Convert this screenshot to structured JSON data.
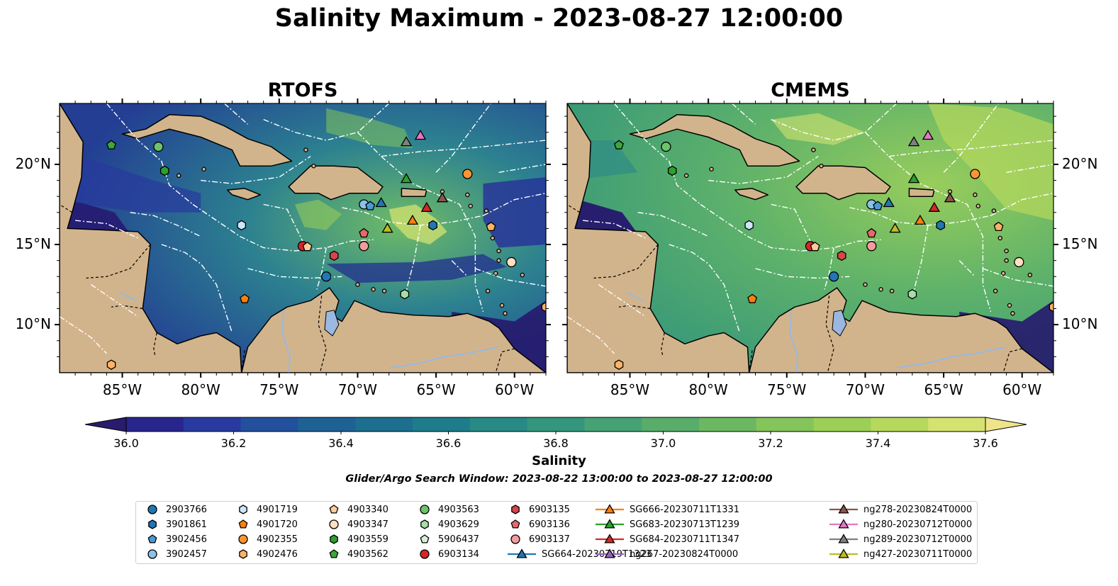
{
  "title": "Salinity Maximum - 2023-08-27 12:00:00",
  "panels": [
    {
      "title": "RTOFS",
      "ocean_mid": "#2e7f8f",
      "ocean_base": "#256f8c"
    },
    {
      "title": "CMEMS",
      "ocean_mid": "#5aae6b",
      "ocean_base": "#4ea86c"
    }
  ],
  "colors": {
    "land": "#d2b48c",
    "lake": "#9ab8e0",
    "deep": "#26186e",
    "high": "#f1e38a",
    "boundary": "#ffffff"
  },
  "lon_ticks": [
    "85°W",
    "80°W",
    "75°W",
    "70°W",
    "65°W",
    "60°W"
  ],
  "lat_ticks": [
    "20°N",
    "15°N",
    "10°N"
  ],
  "colorbar": {
    "title": "Salinity",
    "min": 36.0,
    "max": 37.6,
    "step": 0.1,
    "tick_labels": [
      "36.0",
      "36.2",
      "36.4",
      "36.6",
      "36.8",
      "37.0",
      "37.2",
      "37.4",
      "37.6"
    ],
    "colors": [
      "#2a1b6d",
      "#28258c",
      "#283aa0",
      "#23509c",
      "#1e6294",
      "#1c6f8e",
      "#1f7c8a",
      "#278a84",
      "#34967c",
      "#45a274",
      "#58ad6b",
      "#6cb862",
      "#84c45b",
      "#9ccf56",
      "#b6d95d",
      "#d4e270",
      "#efe48a"
    ]
  },
  "search_window": "Glider/Argo Search Window: 2023-08-22 13:00:00 to 2023-08-27 12:00:00",
  "legend_items": [
    {
      "label": "2903766",
      "marker": "circle",
      "color": "#1f77b4"
    },
    {
      "label": "3901861",
      "marker": "hexagon",
      "color": "#1f77b4"
    },
    {
      "label": "3902456",
      "marker": "pentagon",
      "color": "#4a9bd4"
    },
    {
      "label": "3902457",
      "marker": "circle",
      "color": "#89c2eb"
    },
    {
      "label": "4901719",
      "marker": "hexagon",
      "color": "#cfe6f8"
    },
    {
      "label": "4901720",
      "marker": "pentagon",
      "color": "#ff7f0e"
    },
    {
      "label": "4902355",
      "marker": "circle",
      "color": "#ff9433"
    },
    {
      "label": "4902476",
      "marker": "hexagon",
      "color": "#ffb266"
    },
    {
      "label": "4903340",
      "marker": "pentagon",
      "color": "#ffcc99"
    },
    {
      "label": "4903347",
      "marker": "circle",
      "color": "#ffe1c2"
    },
    {
      "label": "4903559",
      "marker": "hexagon",
      "color": "#2ca02c"
    },
    {
      "label": "4903562",
      "marker": "pentagon",
      "color": "#3aa83a"
    },
    {
      "label": "4903563",
      "marker": "circle",
      "color": "#6cc36c"
    },
    {
      "label": "4903629",
      "marker": "hexagon",
      "color": "#a7dea7"
    },
    {
      "label": "5906437",
      "marker": "pentagon",
      "color": "#d6f2d6"
    },
    {
      "label": "6903134",
      "marker": "circle",
      "color": "#d62728"
    },
    {
      "label": "6903135",
      "marker": "hexagon",
      "color": "#d9434a"
    },
    {
      "label": "6903136",
      "marker": "pentagon",
      "color": "#e56a6a"
    },
    {
      "label": "6903137",
      "marker": "circle",
      "color": "#f29d9d"
    },
    {
      "label": "SG664-20230719T1323",
      "marker": "triangle",
      "color": "#1f77b4",
      "line": true
    },
    {
      "label": "SG666-20230711T1331",
      "marker": "triangle",
      "color": "#ff7f0e",
      "line": true
    },
    {
      "label": "SG683-20230713T1239",
      "marker": "triangle",
      "color": "#2ca02c",
      "line": true
    },
    {
      "label": "SG684-20230711T1347",
      "marker": "triangle",
      "color": "#d62728",
      "line": true
    },
    {
      "label": "ng267-20230824T0000",
      "marker": "triangle",
      "color": "#9467bd",
      "line": true
    },
    {
      "label": "ng278-20230824T0000",
      "marker": "triangle",
      "color": "#8c564b",
      "line": true
    },
    {
      "label": "ng280-20230712T0000",
      "marker": "triangle",
      "color": "#e377c2",
      "line": true
    },
    {
      "label": "ng289-20230712T0000",
      "marker": "triangle",
      "color": "#7f7f7f",
      "line": true
    },
    {
      "label": "ng427-20230711T0000",
      "marker": "triangle",
      "color": "#bcbd22",
      "line": true
    }
  ],
  "observations": [
    {
      "lon": -85.7,
      "lat": 21.2,
      "marker": "pentagon",
      "color": "#3aa83a"
    },
    {
      "lon": -82.7,
      "lat": 21.1,
      "marker": "circle",
      "color": "#6cc36c"
    },
    {
      "lon": -82.3,
      "lat": 19.6,
      "marker": "hexagon",
      "color": "#2ca02c"
    },
    {
      "lon": -77.4,
      "lat": 16.2,
      "marker": "hexagon",
      "color": "#cfe6f8"
    },
    {
      "lon": -77.2,
      "lat": 11.6,
      "marker": "pentagon",
      "color": "#ff7f0e"
    },
    {
      "lon": -73.5,
      "lat": 14.9,
      "marker": "circle",
      "color": "#d62728"
    },
    {
      "lon": -73.2,
      "lat": 14.85,
      "marker": "pentagon",
      "color": "#ffcc99"
    },
    {
      "lon": -71.5,
      "lat": 14.3,
      "marker": "hexagon",
      "color": "#d9434a"
    },
    {
      "lon": -72.0,
      "lat": 13.0,
      "marker": "circle",
      "color": "#1f77b4"
    },
    {
      "lon": -69.6,
      "lat": 15.7,
      "marker": "pentagon",
      "color": "#e56a6a"
    },
    {
      "lon": -69.6,
      "lat": 14.9,
      "marker": "circle",
      "color": "#f29d9d"
    },
    {
      "lon": -69.6,
      "lat": 17.5,
      "marker": "circle",
      "color": "#89c2eb"
    },
    {
      "lon": -69.2,
      "lat": 17.4,
      "marker": "pentagon",
      "color": "#4a9bd4"
    },
    {
      "lon": -68.5,
      "lat": 17.6,
      "marker": "triangle",
      "color": "#1f77b4"
    },
    {
      "lon": -68.1,
      "lat": 16.0,
      "marker": "triangle",
      "color": "#bcbd22"
    },
    {
      "lon": -67.0,
      "lat": 11.9,
      "marker": "hexagon",
      "color": "#a7dea7"
    },
    {
      "lon": -66.9,
      "lat": 21.4,
      "marker": "triangle",
      "color": "#7f7f7f"
    },
    {
      "lon": -66.9,
      "lat": 19.1,
      "marker": "triangle",
      "color": "#2ca02c"
    },
    {
      "lon": -66.5,
      "lat": 16.5,
      "marker": "triangle",
      "color": "#ff7f0e"
    },
    {
      "lon": -66.0,
      "lat": 21.8,
      "marker": "triangle",
      "color": "#e377c2"
    },
    {
      "lon": -65.6,
      "lat": 17.3,
      "marker": "triangle",
      "color": "#d62728"
    },
    {
      "lon": -65.2,
      "lat": 16.2,
      "marker": "hexagon",
      "color": "#1f77b4"
    },
    {
      "lon": -64.6,
      "lat": 17.9,
      "marker": "triangle",
      "color": "#8c564b"
    },
    {
      "lon": -63.0,
      "lat": 19.4,
      "marker": "circle",
      "color": "#ff9433"
    },
    {
      "lon": -61.5,
      "lat": 16.1,
      "marker": "pentagon",
      "color": "#ffb266"
    },
    {
      "lon": -60.2,
      "lat": 13.9,
      "marker": "circle",
      "color": "#ffe1c2"
    },
    {
      "lon": -58.0,
      "lat": 11.1,
      "marker": "hexagon",
      "color": "#ffb266"
    },
    {
      "lon": -85.7,
      "lat": 7.5,
      "marker": "hexagon",
      "color": "#ffb266"
    }
  ]
}
